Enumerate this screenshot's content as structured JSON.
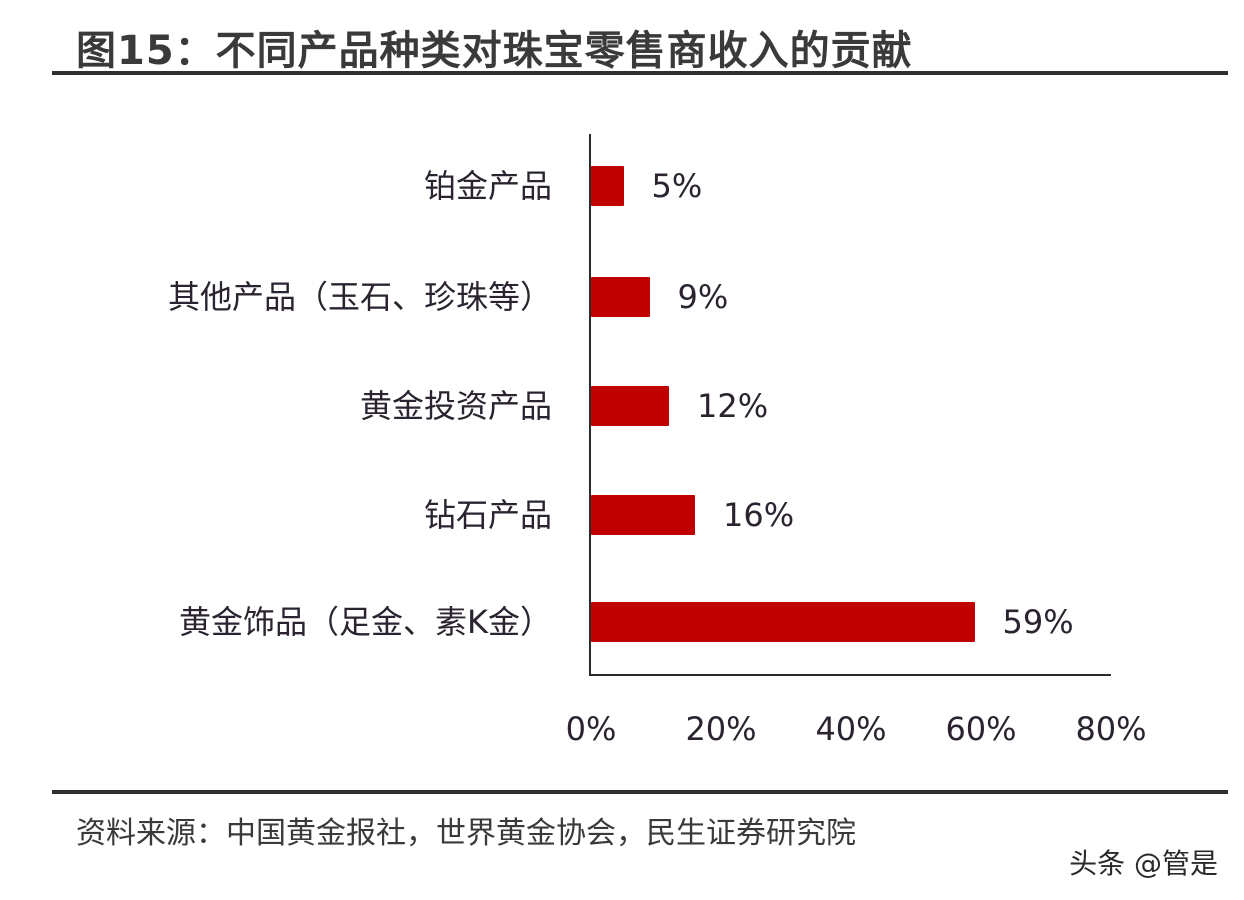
{
  "header": {
    "title": "图15：不同产品种类对珠宝零售商收入的贡献"
  },
  "footer": {
    "source": "资料来源：中国黄金报社，世界黄金协会，民生证券研究院",
    "watermark": "头条 @管是"
  },
  "colors": {
    "bar": "#c00000",
    "rule": "#2e2e33",
    "text": "#2b2430"
  },
  "chart_data": {
    "type": "bar",
    "orientation": "horizontal",
    "title": "图15：不同产品种类对珠宝零售商收入的贡献",
    "xlabel": "",
    "ylabel": "",
    "categories": [
      "铂金产品",
      "其他产品（玉石、珍珠等）",
      "黄金投资产品",
      "钻石产品",
      "黄金饰品（足金、素K金）"
    ],
    "values": [
      5,
      9,
      12,
      16,
      59
    ],
    "value_labels": [
      "5%",
      "9%",
      "12%",
      "16%",
      "59%"
    ],
    "xlim": [
      0,
      80
    ],
    "x_ticks": [
      "0%",
      "20%",
      "40%",
      "60%",
      "80%"
    ],
    "grid": false,
    "legend": null,
    "series_color": "#c00000"
  }
}
